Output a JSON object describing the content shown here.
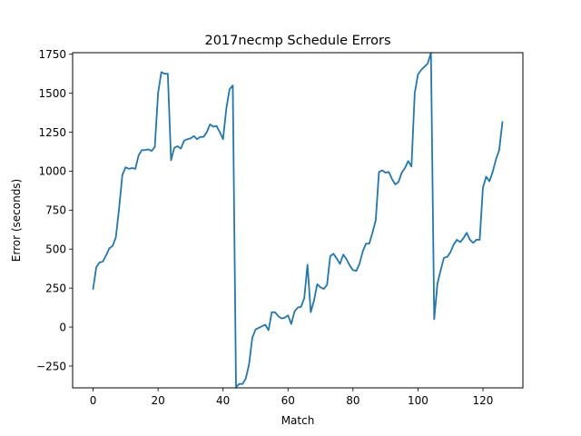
{
  "chart_data": {
    "type": "line",
    "title": "2017necmp Schedule Errors",
    "xlabel": "Match",
    "ylabel": "Error (seconds)",
    "xlim": [
      -6.3,
      132.3
    ],
    "ylim": [
      -390,
      1760
    ],
    "xticks": [
      0,
      20,
      40,
      60,
      80,
      100,
      120
    ],
    "yticks": [
      -250,
      0,
      250,
      500,
      750,
      1000,
      1250,
      1500,
      1750
    ],
    "xtick_labels": [
      "0",
      "20",
      "40",
      "60",
      "80",
      "100",
      "120"
    ],
    "ytick_labels": [
      "−250",
      "0",
      "250",
      "500",
      "750",
      "1000",
      "1250",
      "1500",
      "1750"
    ],
    "grid": false,
    "legend": "none",
    "series": [
      {
        "color": "#1f77b4",
        "x": [
          0,
          1,
          2,
          3,
          4,
          5,
          6,
          7,
          8,
          9,
          10,
          11,
          12,
          13,
          14,
          15,
          16,
          17,
          18,
          19,
          20,
          21,
          22,
          23,
          24,
          25,
          26,
          27,
          28,
          29,
          30,
          31,
          32,
          33,
          34,
          35,
          36,
          37,
          38,
          39,
          40,
          41,
          42,
          43,
          44,
          45,
          46,
          47,
          48,
          49,
          50,
          51,
          52,
          53,
          54,
          55,
          56,
          57,
          58,
          59,
          60,
          61,
          62,
          63,
          64,
          65,
          66,
          67,
          68,
          69,
          70,
          71,
          72,
          73,
          74,
          75,
          76,
          77,
          78,
          79,
          80,
          81,
          82,
          83,
          84,
          85,
          86,
          87,
          88,
          89,
          90,
          91,
          92,
          93,
          94,
          95,
          96,
          97,
          98,
          99,
          100,
          101,
          102,
          103,
          104,
          105,
          106,
          107,
          108,
          109,
          110,
          111,
          112,
          113,
          114,
          115,
          116,
          117,
          118,
          119,
          120,
          121,
          122,
          123,
          124,
          125,
          126
        ],
        "y": [
          245,
          385,
          415,
          420,
          460,
          505,
          520,
          575,
          760,
          975,
          1025,
          1015,
          1020,
          1015,
          1100,
          1135,
          1135,
          1140,
          1130,
          1155,
          1500,
          1635,
          1625,
          1625,
          1070,
          1150,
          1160,
          1145,
          1195,
          1205,
          1210,
          1225,
          1205,
          1220,
          1220,
          1250,
          1300,
          1285,
          1290,
          1250,
          1205,
          1400,
          1525,
          1550,
          -385,
          -365,
          -365,
          -330,
          -240,
          -70,
          -15,
          -5,
          5,
          15,
          -20,
          95,
          95,
          70,
          55,
          60,
          75,
          20,
          100,
          125,
          130,
          185,
          400,
          95,
          170,
          275,
          255,
          245,
          270,
          455,
          470,
          440,
          405,
          465,
          435,
          395,
          365,
          360,
          405,
          485,
          535,
          535,
          605,
          685,
          995,
          1005,
          990,
          995,
          950,
          915,
          930,
          990,
          1020,
          1065,
          1030,
          1500,
          1620,
          1650,
          1670,
          1690,
          1760,
          50,
          280,
          365,
          445,
          450,
          480,
          530,
          560,
          545,
          570,
          605,
          560,
          540,
          560,
          560,
          895,
          965,
          935,
          995,
          1075,
          1135,
          1315
        ]
      }
    ]
  }
}
